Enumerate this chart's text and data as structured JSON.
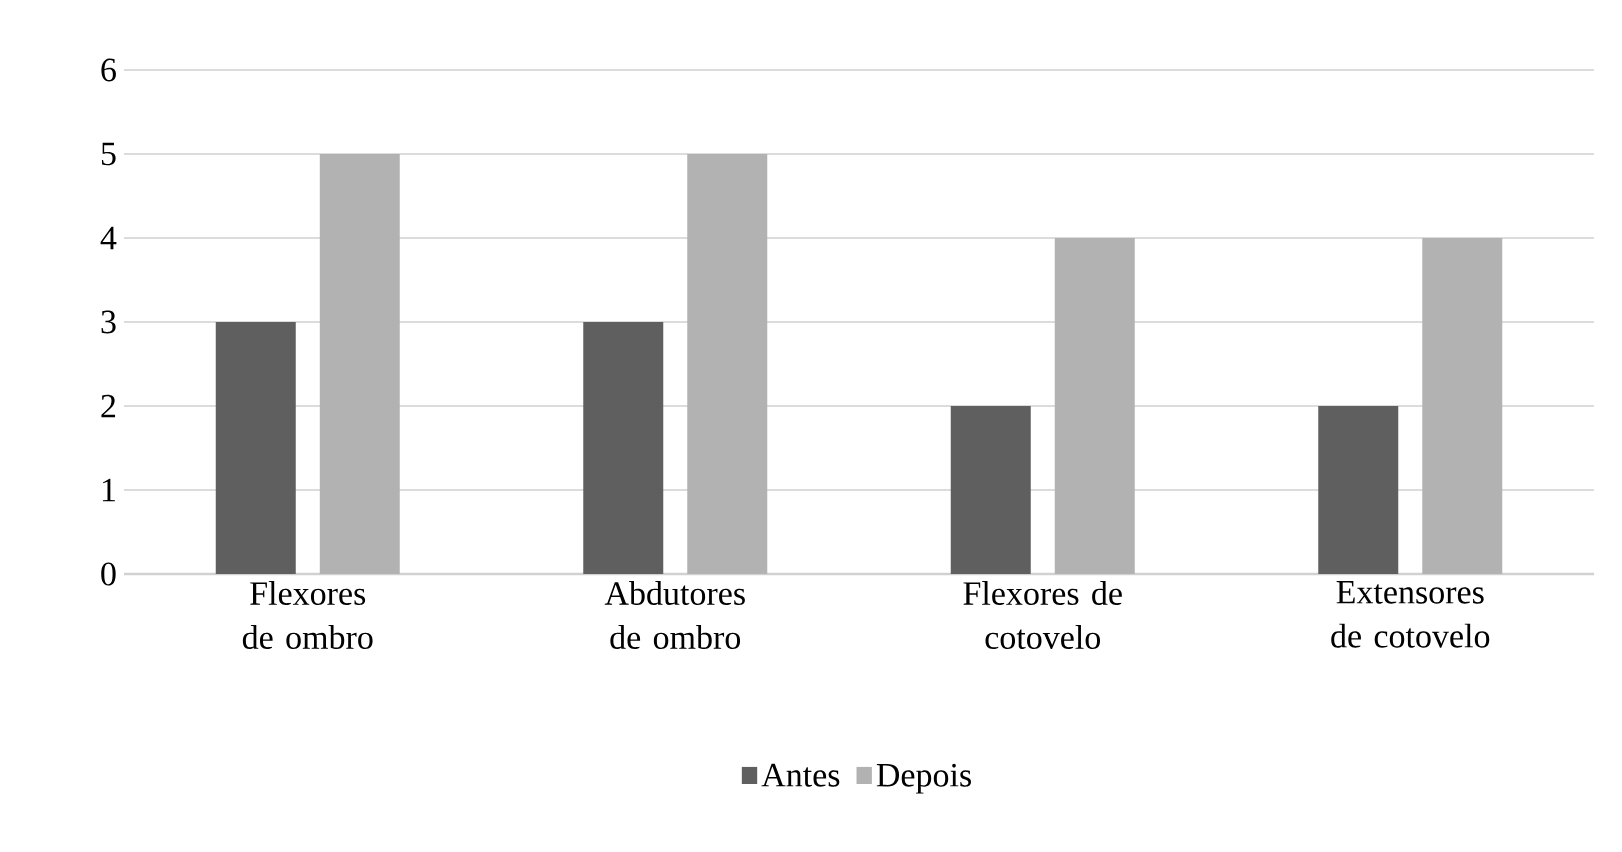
{
  "chart_data": {
    "type": "bar",
    "categories": [
      "Flexores de ombro",
      "Abdutores de ombro",
      "Flexores de cotovelo",
      "Extensores de cotovelo"
    ],
    "series": [
      {
        "name": "Antes",
        "color": "#5f5f5f",
        "values": [
          3,
          3,
          2,
          2
        ]
      },
      {
        "name": "Depois",
        "color": "#b2b2b2",
        "values": [
          5,
          5,
          4,
          4
        ]
      }
    ],
    "ylim": [
      0,
      6
    ],
    "yticks": [
      0,
      1,
      2,
      3,
      4,
      5,
      6
    ],
    "grid": "y",
    "legend": "bottom"
  }
}
